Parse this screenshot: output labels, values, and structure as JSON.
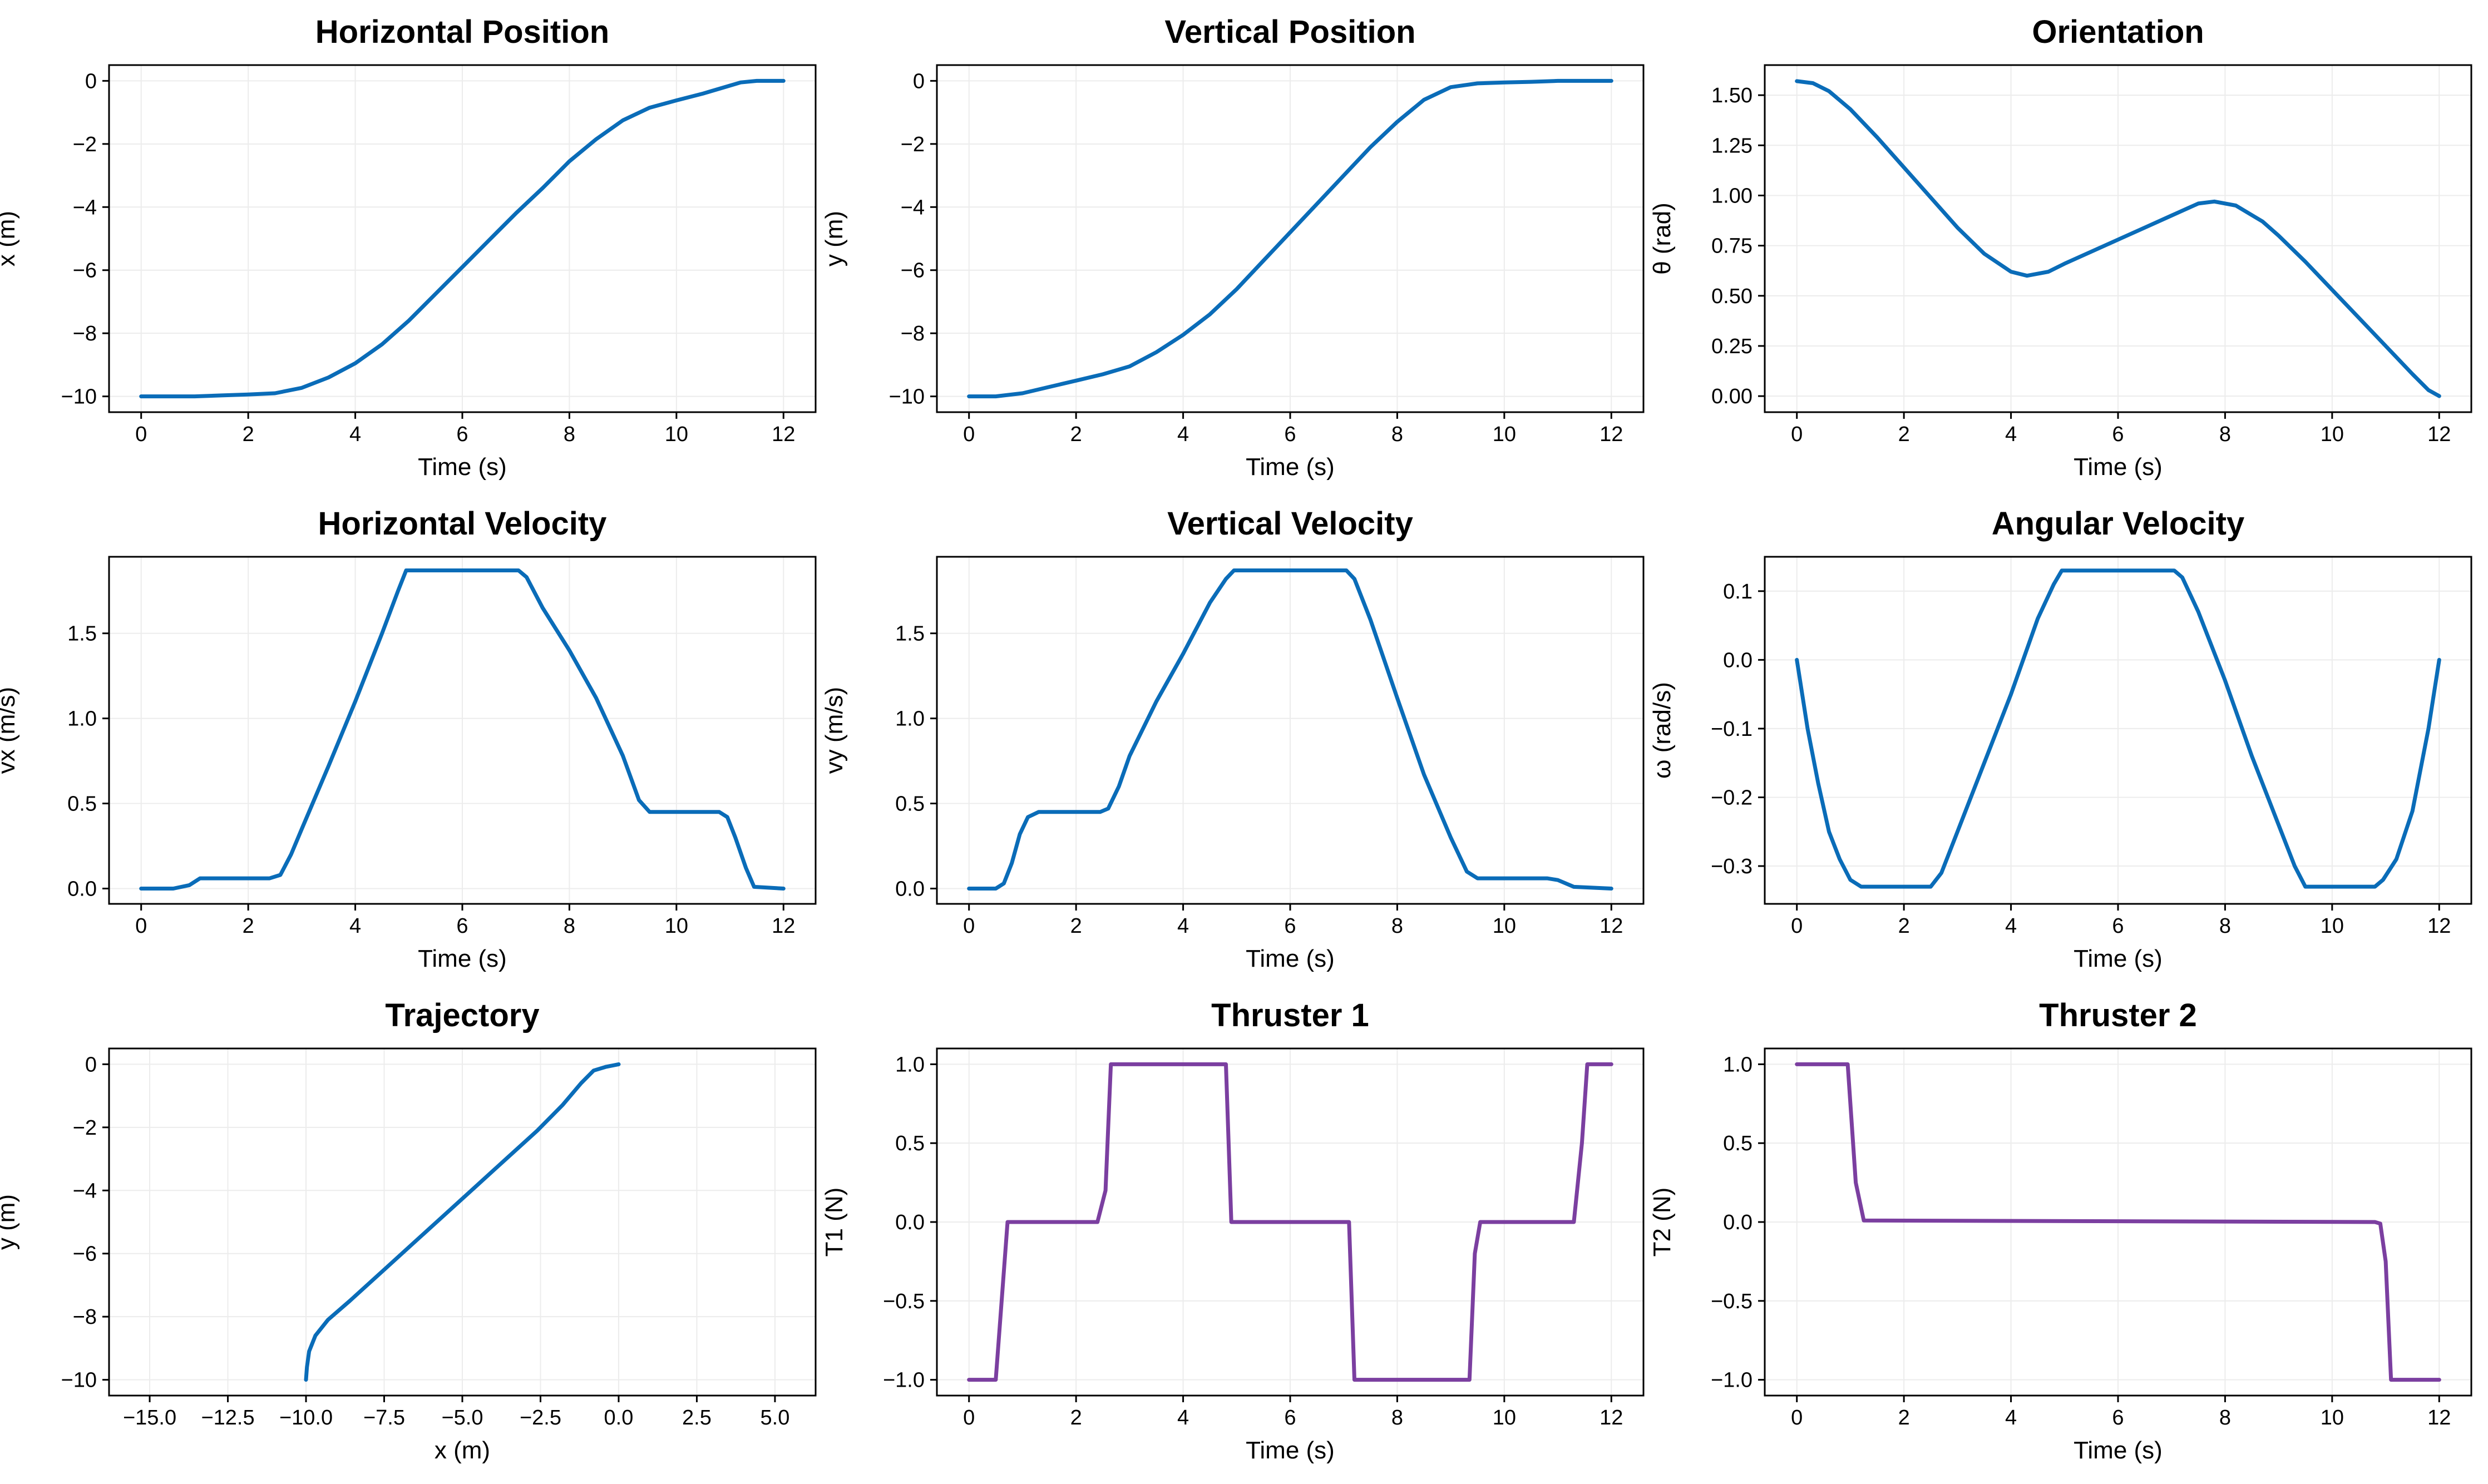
{
  "colors": {
    "line": "#0a6cb8",
    "thrust": "#7b3fa0",
    "grid": "#ececec",
    "frame": "#000000"
  },
  "chart_data": [
    {
      "type": "line",
      "title": "Horizontal Position",
      "xlabel": "Time (s)",
      "ylabel": "x (m)",
      "xlim": [
        -0.6,
        12.6
      ],
      "ylim": [
        -10.5,
        0.5
      ],
      "xticks": [
        0,
        2,
        4,
        6,
        8,
        10,
        12
      ],
      "xtick_labels": [
        "0",
        "2",
        "4",
        "6",
        "8",
        "10",
        "12"
      ],
      "yticks": [
        -10,
        -8,
        -6,
        -4,
        -2,
        0
      ],
      "ytick_labels": [
        "−10",
        "−8",
        "−6",
        "−4",
        "−2",
        "0"
      ],
      "color": "line",
      "series": [
        {
          "x": [
            0,
            0.5,
            1,
            1.5,
            2,
            2.5,
            3,
            3.5,
            4,
            4.5,
            5,
            5.5,
            6,
            6.5,
            7,
            7.5,
            8,
            8.5,
            9,
            9.5,
            10,
            10.5,
            11,
            11.2,
            11.5,
            12
          ],
          "y": [
            -10,
            -10,
            -10,
            -9.97,
            -9.94,
            -9.9,
            -9.73,
            -9.4,
            -8.95,
            -8.35,
            -7.6,
            -6.75,
            -5.9,
            -5.05,
            -4.2,
            -3.4,
            -2.55,
            -1.85,
            -1.25,
            -0.85,
            -0.62,
            -0.4,
            -0.15,
            -0.05,
            0,
            0
          ]
        }
      ]
    },
    {
      "type": "line",
      "title": "Vertical Position",
      "xlabel": "Time (s)",
      "ylabel": "y (m)",
      "xlim": [
        -0.6,
        12.6
      ],
      "ylim": [
        -10.5,
        0.5
      ],
      "xticks": [
        0,
        2,
        4,
        6,
        8,
        10,
        12
      ],
      "xtick_labels": [
        "0",
        "2",
        "4",
        "6",
        "8",
        "10",
        "12"
      ],
      "yticks": [
        -10,
        -8,
        -6,
        -4,
        -2,
        0
      ],
      "ytick_labels": [
        "−10",
        "−8",
        "−6",
        "−4",
        "−2",
        "0"
      ],
      "color": "line",
      "series": [
        {
          "x": [
            0,
            0.5,
            1,
            1.5,
            2,
            2.5,
            3,
            3.5,
            4,
            4.5,
            5,
            5.5,
            6,
            6.5,
            7,
            7.5,
            8,
            8.5,
            9,
            9.5,
            10,
            10.5,
            11,
            11.5,
            12
          ],
          "y": [
            -10,
            -10,
            -9.9,
            -9.7,
            -9.5,
            -9.3,
            -9.05,
            -8.6,
            -8.05,
            -7.4,
            -6.6,
            -5.7,
            -4.8,
            -3.9,
            -3.0,
            -2.1,
            -1.3,
            -0.6,
            -0.2,
            -0.08,
            -0.05,
            -0.03,
            0,
            0,
            0
          ]
        }
      ]
    },
    {
      "type": "line",
      "title": "Orientation",
      "xlabel": "Time (s)",
      "ylabel": "θ (rad)",
      "xlim": [
        -0.6,
        12.6
      ],
      "ylim": [
        -0.08,
        1.65
      ],
      "xticks": [
        0,
        2,
        4,
        6,
        8,
        10,
        12
      ],
      "xtick_labels": [
        "0",
        "2",
        "4",
        "6",
        "8",
        "10",
        "12"
      ],
      "yticks": [
        0,
        0.25,
        0.5,
        0.75,
        1.0,
        1.25,
        1.5
      ],
      "ytick_labels": [
        "0.00",
        "0.25",
        "0.50",
        "0.75",
        "1.00",
        "1.25",
        "1.50"
      ],
      "color": "line",
      "series": [
        {
          "x": [
            0,
            0.3,
            0.6,
            1,
            1.5,
            2,
            2.5,
            3,
            3.5,
            4,
            4.3,
            4.7,
            5,
            5.5,
            6,
            6.5,
            7,
            7.5,
            7.8,
            8.2,
            8.7,
            9,
            9.5,
            10,
            10.5,
            11,
            11.5,
            11.8,
            12
          ],
          "y": [
            1.57,
            1.56,
            1.52,
            1.43,
            1.29,
            1.14,
            0.99,
            0.84,
            0.71,
            0.62,
            0.6,
            0.62,
            0.66,
            0.72,
            0.78,
            0.84,
            0.9,
            0.96,
            0.97,
            0.95,
            0.87,
            0.8,
            0.67,
            0.53,
            0.39,
            0.25,
            0.11,
            0.03,
            0
          ]
        }
      ]
    },
    {
      "type": "line",
      "title": "Horizontal Velocity",
      "xlabel": "Time (s)",
      "ylabel": "vx (m/s)",
      "xlim": [
        -0.6,
        12.6
      ],
      "ylim": [
        -0.09,
        1.95
      ],
      "xticks": [
        0,
        2,
        4,
        6,
        8,
        10,
        12
      ],
      "xtick_labels": [
        "0",
        "2",
        "4",
        "6",
        "8",
        "10",
        "12"
      ],
      "yticks": [
        0,
        0.5,
        1.0,
        1.5
      ],
      "ytick_labels": [
        "0.0",
        "0.5",
        "1.0",
        "1.5"
      ],
      "color": "line",
      "series": [
        {
          "x": [
            0,
            0.6,
            0.9,
            1.1,
            2.4,
            2.6,
            2.8,
            3,
            3.5,
            4,
            4.5,
            4.8,
            4.95,
            7.05,
            7.2,
            7.5,
            8,
            8.5,
            9,
            9.3,
            9.5,
            10.8,
            10.95,
            11.1,
            11.3,
            11.45,
            12
          ],
          "y": [
            0,
            0,
            0.02,
            0.06,
            0.06,
            0.08,
            0.2,
            0.35,
            0.72,
            1.1,
            1.5,
            1.75,
            1.87,
            1.87,
            1.83,
            1.65,
            1.4,
            1.12,
            0.78,
            0.52,
            0.45,
            0.45,
            0.42,
            0.3,
            0.12,
            0.01,
            0
          ]
        }
      ]
    },
    {
      "type": "line",
      "title": "Vertical Velocity",
      "xlabel": "Time (s)",
      "ylabel": "vy (m/s)",
      "xlim": [
        -0.6,
        12.6
      ],
      "ylim": [
        -0.09,
        1.95
      ],
      "xticks": [
        0,
        2,
        4,
        6,
        8,
        10,
        12
      ],
      "xtick_labels": [
        "0",
        "2",
        "4",
        "6",
        "8",
        "10",
        "12"
      ],
      "yticks": [
        0,
        0.5,
        1.0,
        1.5
      ],
      "ytick_labels": [
        "0.0",
        "0.5",
        "1.0",
        "1.5"
      ],
      "color": "line",
      "series": [
        {
          "x": [
            0,
            0.5,
            0.65,
            0.8,
            0.95,
            1.1,
            1.3,
            2.45,
            2.6,
            2.8,
            3,
            3.5,
            4,
            4.5,
            4.8,
            4.95,
            7.05,
            7.2,
            7.5,
            8,
            8.5,
            9,
            9.3,
            9.5,
            10.8,
            11,
            11.3,
            12
          ],
          "y": [
            0,
            0,
            0.03,
            0.15,
            0.32,
            0.42,
            0.45,
            0.45,
            0.47,
            0.6,
            0.78,
            1.1,
            1.38,
            1.68,
            1.82,
            1.87,
            1.87,
            1.82,
            1.58,
            1.12,
            0.67,
            0.3,
            0.1,
            0.06,
            0.06,
            0.05,
            0.01,
            0
          ]
        }
      ]
    },
    {
      "type": "line",
      "title": "Angular Velocity",
      "xlabel": "Time (s)",
      "ylabel": "ω (rad/s)",
      "xlim": [
        -0.6,
        12.6
      ],
      "ylim": [
        -0.355,
        0.15
      ],
      "xticks": [
        0,
        2,
        4,
        6,
        8,
        10,
        12
      ],
      "xtick_labels": [
        "0",
        "2",
        "4",
        "6",
        "8",
        "10",
        "12"
      ],
      "yticks": [
        -0.3,
        -0.2,
        -0.1,
        0,
        0.1
      ],
      "ytick_labels": [
        "−0.3",
        "−0.2",
        "−0.1",
        "0.0",
        "0.1"
      ],
      "color": "line",
      "series": [
        {
          "x": [
            0,
            0.2,
            0.4,
            0.6,
            0.8,
            1,
            1.2,
            2.5,
            2.7,
            3,
            3.5,
            4,
            4.5,
            4.8,
            4.95,
            7.05,
            7.2,
            7.5,
            8,
            8.5,
            9,
            9.3,
            9.5,
            10.8,
            10.95,
            11.2,
            11.5,
            11.8,
            12
          ],
          "y": [
            0,
            -0.1,
            -0.18,
            -0.25,
            -0.29,
            -0.32,
            -0.33,
            -0.33,
            -0.31,
            -0.25,
            -0.15,
            -0.05,
            0.06,
            0.11,
            0.13,
            0.13,
            0.12,
            0.07,
            -0.03,
            -0.14,
            -0.24,
            -0.3,
            -0.33,
            -0.33,
            -0.32,
            -0.29,
            -0.22,
            -0.1,
            0
          ]
        }
      ]
    },
    {
      "type": "line",
      "title": "Trajectory",
      "xlabel": "x (m)",
      "ylabel": "y (m)",
      "xlim": [
        -16.3,
        6.3
      ],
      "ylim": [
        -10.5,
        0.5
      ],
      "xticks": [
        -15,
        -12.5,
        -10,
        -7.5,
        -5,
        -2.5,
        0,
        2.5,
        5
      ],
      "xtick_labels": [
        "−15.0",
        "−12.5",
        "−10.0",
        "−7.5",
        "−5.0",
        "−2.5",
        "0.0",
        "2.5",
        "5.0"
      ],
      "yticks": [
        -10,
        -8,
        -6,
        -4,
        -2,
        0
      ],
      "ytick_labels": [
        "−10",
        "−8",
        "−6",
        "−4",
        "−2",
        "0"
      ],
      "color": "line",
      "series": [
        {
          "x": [
            -10,
            -9.97,
            -9.9,
            -9.7,
            -9.3,
            -8.6,
            -7.6,
            -6.6,
            -5.6,
            -4.6,
            -3.6,
            -2.6,
            -1.8,
            -1.2,
            -0.8,
            -0.4,
            0
          ],
          "y": [
            -10,
            -9.6,
            -9.1,
            -8.6,
            -8.1,
            -7.5,
            -6.6,
            -5.7,
            -4.8,
            -3.9,
            -3.0,
            -2.1,
            -1.3,
            -0.6,
            -0.2,
            -0.08,
            0
          ]
        }
      ]
    },
    {
      "type": "line",
      "title": "Thruster 1",
      "xlabel": "Time (s)",
      "ylabel": "T1 (N)",
      "xlim": [
        -0.6,
        12.6
      ],
      "ylim": [
        -1.1,
        1.1
      ],
      "xticks": [
        0,
        2,
        4,
        6,
        8,
        10,
        12
      ],
      "xtick_labels": [
        "0",
        "2",
        "4",
        "6",
        "8",
        "10",
        "12"
      ],
      "yticks": [
        -1,
        -0.5,
        0,
        0.5,
        1
      ],
      "ytick_labels": [
        "−1.0",
        "−0.5",
        "0.0",
        "0.5",
        "1.0"
      ],
      "color": "thrust",
      "series": [
        {
          "x": [
            0,
            0.5,
            0.72,
            2.4,
            2.55,
            2.65,
            4.8,
            4.9,
            7.1,
            7.2,
            9.35,
            9.45,
            9.55,
            11.3,
            11.45,
            11.55,
            12
          ],
          "y": [
            -1,
            -1,
            0,
            0,
            0.2,
            1,
            1,
            0,
            0,
            -1,
            -1,
            -0.2,
            0,
            0,
            0.5,
            1,
            1
          ]
        }
      ]
    },
    {
      "type": "line",
      "title": "Thruster 2",
      "xlabel": "Time (s)",
      "ylabel": "T2 (N)",
      "xlim": [
        -0.6,
        12.6
      ],
      "ylim": [
        -1.1,
        1.1
      ],
      "xticks": [
        0,
        2,
        4,
        6,
        8,
        10,
        12
      ],
      "xtick_labels": [
        "0",
        "2",
        "4",
        "6",
        "8",
        "10",
        "12"
      ],
      "yticks": [
        -1,
        -0.5,
        0,
        0.5,
        1
      ],
      "ytick_labels": [
        "−1.0",
        "−0.5",
        "0.0",
        "0.5",
        "1.0"
      ],
      "color": "thrust",
      "series": [
        {
          "x": [
            0,
            0.95,
            1.1,
            1.25,
            10.8,
            10.9,
            11.0,
            11.1,
            12
          ],
          "y": [
            1,
            1,
            0.25,
            0.01,
            0,
            -0.01,
            -0.25,
            -1,
            -1
          ]
        }
      ]
    }
  ]
}
